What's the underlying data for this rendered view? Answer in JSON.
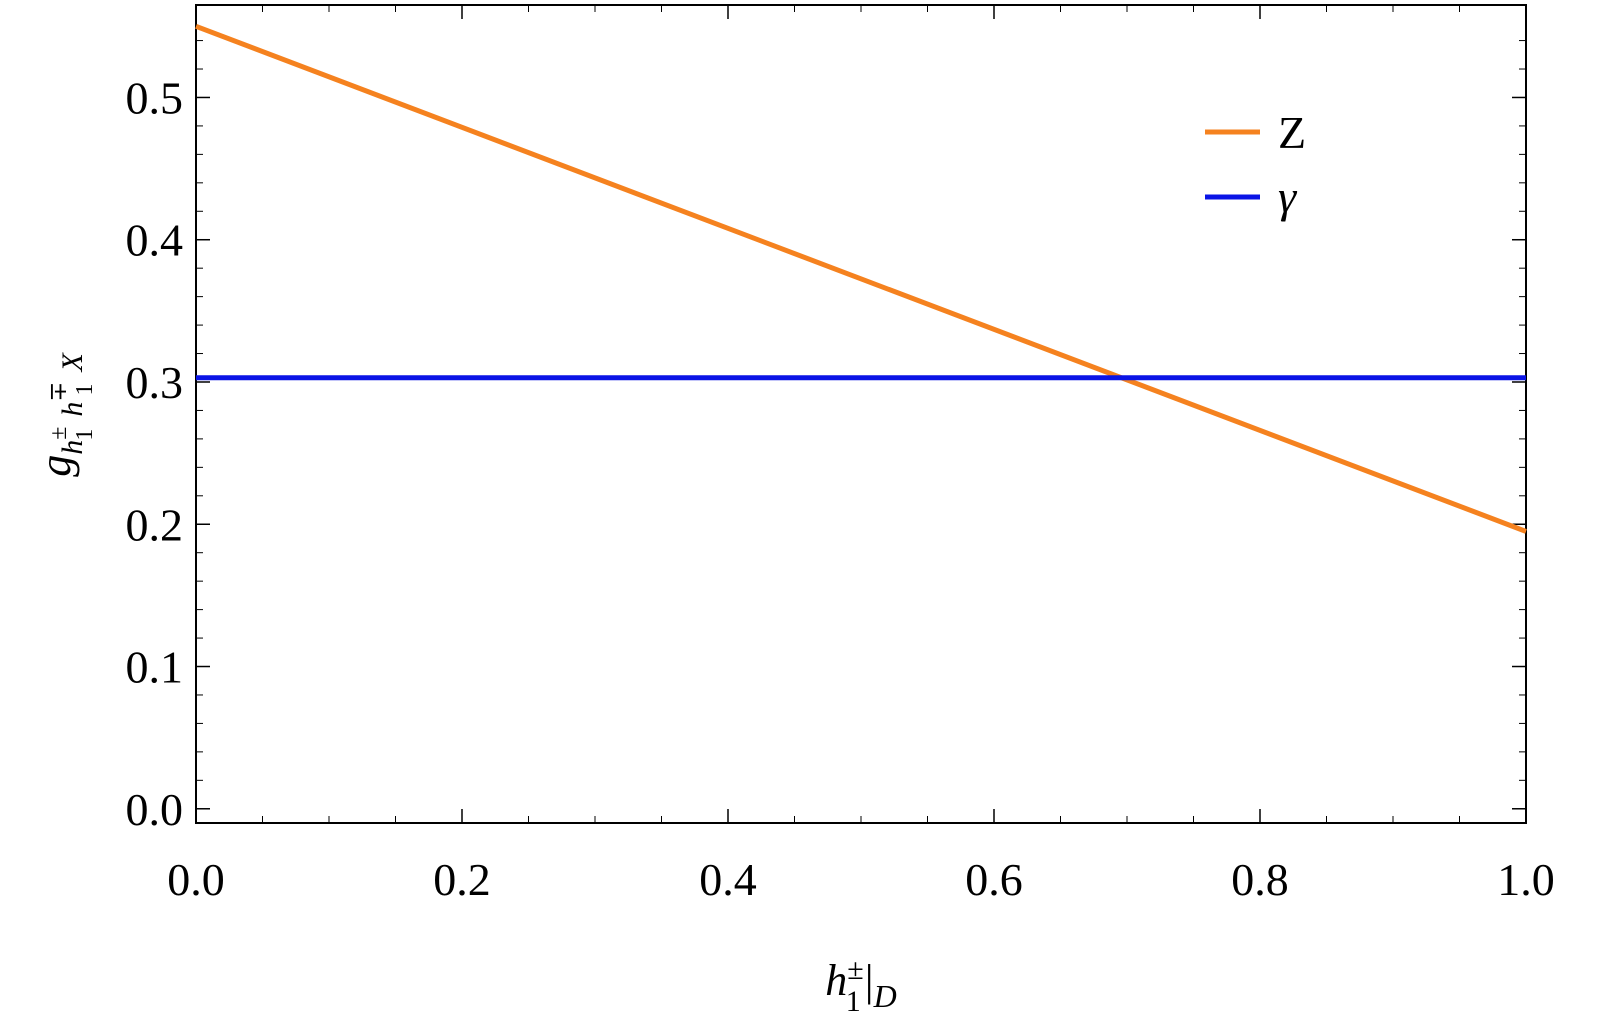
{
  "chart_data": {
    "type": "line",
    "xlabel": "h1±|D",
    "ylabel": "g h1± h1∓ X",
    "xlim": [
      0.0,
      1.0
    ],
    "ylim": [
      -0.01,
      0.565
    ],
    "x_ticks": [
      "0.0",
      "0.2",
      "0.4",
      "0.6",
      "0.8",
      "1.0"
    ],
    "y_ticks": [
      "0.0",
      "0.1",
      "0.2",
      "0.3",
      "0.4",
      "0.5"
    ],
    "grid": false,
    "legend_position": "top-right",
    "series": [
      {
        "name": "Z",
        "color": "#f5821f",
        "x": [
          0.0,
          1.0
        ],
        "y": [
          0.55,
          0.195
        ]
      },
      {
        "name": "γ",
        "color": "#0a14e6",
        "x": [
          0.0,
          1.0
        ],
        "y": [
          0.303,
          0.303
        ]
      }
    ]
  }
}
